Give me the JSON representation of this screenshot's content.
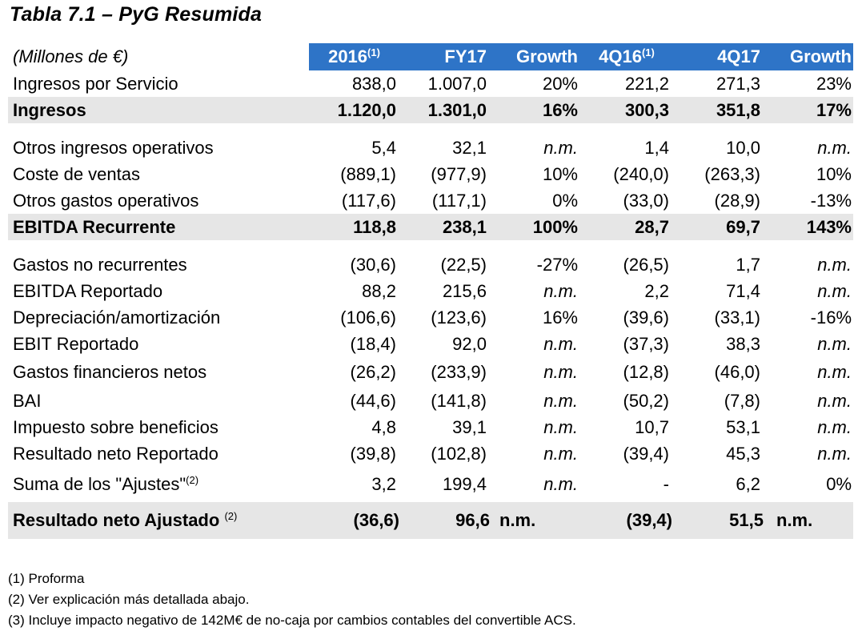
{
  "title": "Tabla 7.1 – PyG Resumida",
  "table": {
    "header": {
      "label": "(Millones de €)",
      "cols": [
        {
          "text": "2016",
          "sup": "(1)"
        },
        {
          "text": "FY17",
          "sup": ""
        },
        {
          "text": "Growth",
          "sup": ""
        },
        {
          "text": "4Q16",
          "sup": "(1)"
        },
        {
          "text": "4Q17",
          "sup": ""
        },
        {
          "text": "Growth",
          "sup": ""
        }
      ]
    },
    "rows": [
      {
        "label": "Ingresos por Servicio",
        "values": [
          "838,0",
          "1.007,0",
          "20%",
          "221,2",
          "271,3",
          "23%"
        ]
      },
      {
        "label": "Ingresos",
        "values": [
          "1.120,0",
          "1.301,0",
          "16%",
          "300,3",
          "351,8",
          "17%"
        ]
      },
      {
        "label": "Otros ingresos operativos",
        "values": [
          "5,4",
          "32,1",
          "n.m.",
          "1,4",
          "10,0",
          "n.m."
        ]
      },
      {
        "label": "Coste de ventas",
        "values": [
          "(889,1)",
          "(977,9)",
          "10%",
          "(240,0)",
          "(263,3)",
          "10%"
        ]
      },
      {
        "label": "Otros gastos operativos",
        "values": [
          "(117,6)",
          "(117,1)",
          "0%",
          "(33,0)",
          "(28,9)",
          "-13%"
        ]
      },
      {
        "label": "EBITDA Recurrente",
        "values": [
          "118,8",
          "238,1",
          "100%",
          "28,7",
          "69,7",
          "143%"
        ]
      },
      {
        "label": "Gastos no recurrentes",
        "values": [
          "(30,6)",
          "(22,5)",
          "-27%",
          "(26,5)",
          "1,7",
          "n.m."
        ]
      },
      {
        "label": "EBITDA Reportado",
        "values": [
          "88,2",
          "215,6",
          "n.m.",
          "2,2",
          "71,4",
          "n.m."
        ]
      },
      {
        "label": "Depreciación/amortización",
        "values": [
          "(106,6)",
          "(123,6)",
          "16%",
          "(39,6)",
          "(33,1)",
          "-16%"
        ]
      },
      {
        "label": "EBIT Reportado",
        "values": [
          "(18,4)",
          "92,0",
          "n.m.",
          "(37,3)",
          "38,3",
          "n.m."
        ]
      },
      {
        "label": "Gastos financieros netos",
        "values": [
          "(26,2)",
          "(233,9)",
          "n.m.",
          "(12,8)",
          "(46,0)",
          "n.m."
        ]
      },
      {
        "label": "BAI",
        "values": [
          "(44,6)",
          "(141,8)",
          "n.m.",
          "(50,2)",
          "(7,8)",
          "n.m."
        ]
      },
      {
        "label": "Impuesto sobre beneficios",
        "values": [
          "4,8",
          "39,1",
          "n.m.",
          "10,7",
          "53,1",
          "n.m."
        ]
      },
      {
        "label": "Resultado neto Reportado",
        "values": [
          "(39,8)",
          "(102,8)",
          "n.m.",
          "(39,4)",
          "45,3",
          "n.m."
        ]
      },
      {
        "label": "Suma de los \"Ajustes\"",
        "sup": "(2)",
        "values": [
          "3,2",
          "199,4",
          "n.m.",
          "-",
          "6,2",
          "0%"
        ]
      },
      {
        "label": "Resultado neto Ajustado",
        "sup": "(2)",
        "values": [
          "(36,6)",
          "96,6",
          "n.m.",
          "(39,4)",
          "51,5",
          "n.m."
        ]
      }
    ]
  },
  "notes": [
    "(1)  Proforma",
    "(2)  Ver explicación más detallada abajo.",
    "(3)  Incluye impacto negativo de 142M€ de no-caja por cambios contables del convertible ACS."
  ],
  "colors": {
    "header_bg": "#2e74c7",
    "header_text": "#ffffff",
    "highlight_row_bg": "#e6e6e6"
  }
}
